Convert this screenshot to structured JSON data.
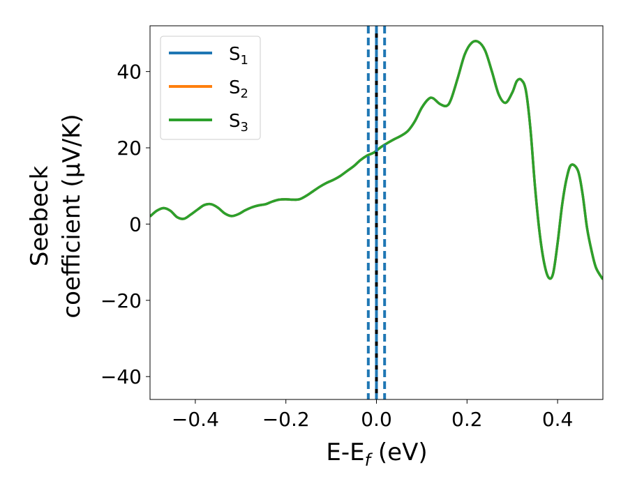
{
  "chart_data": {
    "type": "line",
    "xlabel": "E-E",
    "xlabel_sub": "f",
    "xlabel_unit": " (eV)",
    "ylabel_line1": "Seebeck",
    "ylabel_line2": "coefficient  (μV/K)",
    "xlim": [
      -0.5,
      0.5
    ],
    "ylim": [
      -46,
      52
    ],
    "xticks": [
      -0.4,
      -0.2,
      0.0,
      0.2,
      0.4
    ],
    "xtick_labels": [
      "−0.4",
      "−0.2",
      "0.0",
      "0.2",
      "0.4"
    ],
    "yticks": [
      -40,
      -20,
      0,
      20,
      40
    ],
    "ytick_labels": [
      "−40",
      "−20",
      "0",
      "20",
      "40"
    ],
    "grid": false,
    "legend_placement": "top-left",
    "series": [
      {
        "name": "S",
        "name_sub": "1",
        "color": "#1f77b4"
      },
      {
        "name": "S",
        "name_sub": "2",
        "color": "#ff7f0e"
      },
      {
        "name": "S",
        "name_sub": "3",
        "color": "#2ca02c"
      }
    ],
    "x": [
      -0.5,
      -0.485,
      -0.47,
      -0.455,
      -0.44,
      -0.425,
      -0.41,
      -0.395,
      -0.38,
      -0.365,
      -0.35,
      -0.335,
      -0.32,
      -0.305,
      -0.29,
      -0.275,
      -0.26,
      -0.245,
      -0.23,
      -0.215,
      -0.2,
      -0.185,
      -0.17,
      -0.155,
      -0.14,
      -0.125,
      -0.11,
      -0.095,
      -0.08,
      -0.065,
      -0.05,
      -0.035,
      -0.02,
      -0.005,
      0.01,
      0.025,
      0.04,
      0.055,
      0.07,
      0.085,
      0.1,
      0.115,
      0.125,
      0.14,
      0.155,
      0.165,
      0.18,
      0.195,
      0.21,
      0.225,
      0.24,
      0.255,
      0.27,
      0.285,
      0.3,
      0.31,
      0.32,
      0.33,
      0.34,
      0.35,
      0.36,
      0.37,
      0.38,
      0.39,
      0.4,
      0.41,
      0.42,
      0.43,
      0.445,
      0.455,
      0.465,
      0.475,
      0.485,
      0.5
    ],
    "y": [
      2,
      3.5,
      4.2,
      3.5,
      1.8,
      1.4,
      2.5,
      3.8,
      5,
      5.2,
      4.3,
      2.8,
      2.1,
      2.6,
      3.6,
      4.4,
      4.9,
      5.2,
      5.9,
      6.4,
      6.5,
      6.4,
      6.5,
      7.4,
      8.6,
      9.8,
      10.8,
      11.6,
      12.6,
      13.9,
      15.2,
      16.8,
      18,
      18.8,
      20.2,
      21.3,
      22.3,
      23.2,
      24.5,
      27,
      30.5,
      32.8,
      33,
      31.5,
      31,
      32.8,
      38.5,
      44.5,
      47.5,
      47.8,
      45.5,
      40,
      34,
      31.8,
      34.5,
      37.5,
      37.8,
      35,
      25,
      10,
      -2,
      -10,
      -14,
      -13,
      -5,
      5,
      12,
      15.5,
      14,
      8,
      -1,
      -7,
      -11.5,
      -14.5
    ],
    "vlines": [
      {
        "x": -0.018,
        "style": "dashed",
        "color": "#1f77b4"
      },
      {
        "x": 0.0,
        "style": "solid",
        "color": "#000000"
      },
      {
        "x": 0.0,
        "style": "dashed",
        "color": "#1f77b4"
      },
      {
        "x": 0.018,
        "style": "dashed",
        "color": "#1f77b4"
      }
    ]
  }
}
